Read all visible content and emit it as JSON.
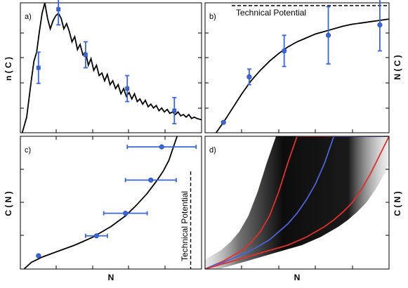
{
  "panels": {
    "a": {
      "label": "a)",
      "ylabel": "n ( C )"
    },
    "b": {
      "label": "b)",
      "ylabel": "N ( C )",
      "annotation": "Technical Potential"
    },
    "c": {
      "label": "c)",
      "ylabel": "C ( N )",
      "xlabel": "N",
      "annotation": "Technical Potential"
    },
    "d": {
      "label": "d)",
      "ylabel": "C ( N )",
      "xlabel": "N"
    }
  },
  "colors": {
    "points": "#3a66d6",
    "curve": "#000000",
    "red": "#e0302c",
    "blue": "#4a63d8"
  },
  "chart_data": [
    {
      "panel": "a",
      "type": "line",
      "xlim": [
        0,
        10
      ],
      "ylim": [
        0,
        1
      ],
      "curve_x": [
        0.1,
        0.35,
        0.6,
        0.75,
        0.9,
        1.05,
        1.2,
        1.35,
        1.5,
        1.65,
        1.8,
        1.95,
        2.1,
        2.25,
        2.4,
        2.55,
        2.7,
        2.85,
        3.0,
        3.15,
        3.3,
        3.45,
        3.6,
        3.75,
        3.9,
        4.05,
        4.2,
        4.35,
        4.5,
        4.65,
        4.8,
        4.95,
        5.1,
        5.25,
        5.4,
        5.55,
        5.7,
        5.85,
        6.0,
        6.15,
        6.3,
        6.45,
        6.6,
        6.75,
        6.9,
        7.05,
        7.2,
        7.35,
        7.5,
        7.65,
        7.8,
        7.95,
        8.1,
        8.25,
        8.4,
        8.55,
        8.7,
        8.85,
        9.0,
        9.15,
        9.3,
        9.45,
        9.6,
        9.75,
        10.0
      ],
      "curve_y": [
        0.0,
        0.12,
        0.4,
        0.55,
        0.62,
        0.78,
        0.92,
        1.0,
        0.88,
        0.8,
        0.86,
        0.9,
        0.92,
        0.88,
        0.8,
        0.84,
        0.78,
        0.7,
        0.74,
        0.64,
        0.68,
        0.6,
        0.62,
        0.52,
        0.57,
        0.48,
        0.52,
        0.44,
        0.46,
        0.4,
        0.45,
        0.37,
        0.4,
        0.34,
        0.37,
        0.3,
        0.34,
        0.28,
        0.31,
        0.26,
        0.3,
        0.24,
        0.26,
        0.22,
        0.25,
        0.2,
        0.22,
        0.19,
        0.21,
        0.17,
        0.19,
        0.16,
        0.18,
        0.15,
        0.16,
        0.14,
        0.16,
        0.13,
        0.14,
        0.12,
        0.14,
        0.11,
        0.12,
        0.11,
        0.1
      ],
      "points_x": [
        1.0,
        2.1,
        3.6,
        5.9,
        8.5
      ],
      "points_y": [
        0.5,
        0.95,
        0.6,
        0.34,
        0.17
      ],
      "y_err": [
        0.12,
        0.12,
        0.1,
        0.1,
        0.1
      ]
    },
    {
      "panel": "b",
      "type": "line",
      "xlim": [
        0,
        10
      ],
      "ylim": [
        0,
        1
      ],
      "technical_potential": 1.0,
      "curve_x": [
        0.6,
        1.0,
        1.5,
        2.0,
        2.5,
        3.0,
        3.5,
        4.0,
        4.5,
        5.0,
        5.5,
        6.0,
        6.5,
        7.0,
        7.5,
        8.0,
        8.5,
        9.0,
        9.5,
        10.0
      ],
      "curve_y": [
        0.0,
        0.08,
        0.19,
        0.3,
        0.4,
        0.48,
        0.55,
        0.61,
        0.66,
        0.7,
        0.73,
        0.76,
        0.78,
        0.8,
        0.82,
        0.835,
        0.845,
        0.855,
        0.865,
        0.875
      ],
      "points_x": [
        1.0,
        2.4,
        4.3,
        6.7,
        9.5
      ],
      "points_y": [
        0.08,
        0.43,
        0.63,
        0.75,
        0.83
      ],
      "y_err": [
        0.0,
        0.06,
        0.12,
        0.22,
        0.2
      ]
    },
    {
      "panel": "c",
      "type": "line",
      "xlim": [
        0,
        10
      ],
      "ylim": [
        0,
        1
      ],
      "technical_potential": 9.4,
      "curve_x": [
        0.2,
        0.6,
        1.2,
        2.0,
        3.0,
        4.0,
        5.0,
        5.8,
        6.4,
        7.0,
        7.5,
        7.9,
        8.2,
        8.4,
        8.55,
        8.65
      ],
      "curve_y": [
        0.0,
        0.05,
        0.09,
        0.13,
        0.18,
        0.24,
        0.32,
        0.4,
        0.48,
        0.57,
        0.66,
        0.74,
        0.82,
        0.9,
        0.96,
        1.0
      ],
      "points_x": [
        1.0,
        4.2,
        5.8,
        7.2,
        7.8
      ],
      "points_y": [
        0.1,
        0.25,
        0.42,
        0.67,
        0.92
      ],
      "x_err": [
        0.0,
        0.6,
        1.2,
        1.4,
        1.9
      ]
    },
    {
      "panel": "d",
      "type": "area",
      "xlim": [
        0,
        10
      ],
      "ylim": [
        0,
        1
      ],
      "x": [
        0,
        0.5,
        1,
        1.5,
        2,
        2.5,
        3,
        3.5,
        4,
        4.5,
        5,
        5.5,
        6,
        6.5,
        7,
        7.5,
        8,
        8.5,
        9,
        9.5,
        10
      ],
      "series": [
        {
          "y": [
            0.0,
            0.03,
            0.06,
            0.1,
            0.14,
            0.2,
            0.28,
            0.4,
            0.58,
            0.8,
            1.0,
            1.0,
            1.0,
            1.0,
            1.0,
            1.0,
            1.0,
            1.0,
            1.0,
            1.0,
            1.0
          ]
        },
        {
          "y": [
            0.0,
            0.03,
            0.05,
            0.08,
            0.11,
            0.14,
            0.18,
            0.22,
            0.28,
            0.34,
            0.42,
            0.52,
            0.64,
            0.8,
            1.0,
            1.0,
            1.0,
            1.0,
            1.0,
            1.0,
            1.0
          ]
        },
        {
          "y": [
            0.0,
            0.02,
            0.04,
            0.06,
            0.08,
            0.1,
            0.12,
            0.14,
            0.16,
            0.18,
            0.21,
            0.24,
            0.28,
            0.32,
            0.37,
            0.43,
            0.5,
            0.6,
            0.72,
            0.86,
            1.0
          ]
        }
      ]
    }
  ]
}
